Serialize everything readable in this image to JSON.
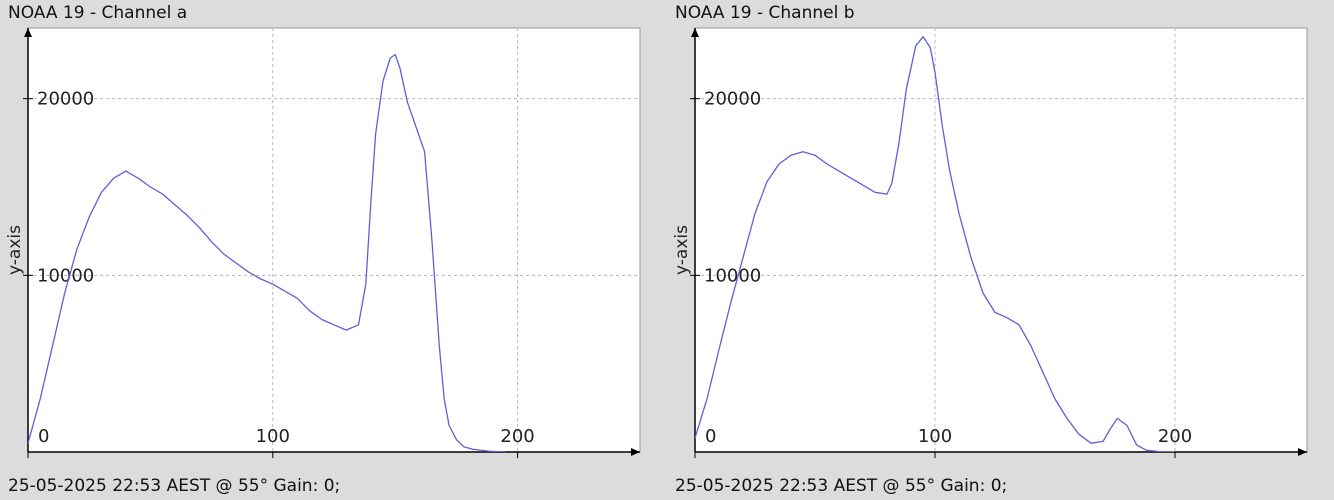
{
  "chart_data": [
    {
      "type": "line",
      "title": "NOAA 19 - Channel a",
      "footer": "25-05-2025 22:53 AEST @ 55° Gain: 0;",
      "xlabel": "",
      "ylabel": "y-axis",
      "xlim": [
        0,
        250
      ],
      "ylim": [
        0,
        24000
      ],
      "x_ticks": [
        0,
        100,
        200
      ],
      "y_ticks": [
        10000,
        20000
      ],
      "grid": true,
      "series": [
        {
          "color": "#5f5fd9",
          "x": [
            -5,
            0,
            5,
            10,
            15,
            20,
            25,
            30,
            35,
            40,
            45,
            50,
            55,
            60,
            65,
            70,
            75,
            80,
            85,
            90,
            95,
            100,
            105,
            110,
            115,
            120,
            125,
            130,
            135,
            138,
            140,
            142,
            145,
            148,
            150,
            152,
            155,
            158,
            162,
            165,
            168,
            170,
            172,
            175,
            178,
            182,
            188,
            195
          ],
          "y": [
            0,
            500,
            3000,
            6000,
            9000,
            11500,
            13300,
            14700,
            15500,
            15900,
            15500,
            15000,
            14600,
            14000,
            13400,
            12700,
            11900,
            11200,
            10700,
            10200,
            9800,
            9500,
            9100,
            8700,
            8000,
            7500,
            7200,
            6900,
            7200,
            9500,
            14000,
            18000,
            21000,
            22300,
            22500,
            21700,
            19800,
            18600,
            17000,
            12000,
            6000,
            3000,
            1500,
            700,
            300,
            150,
            50,
            0
          ]
        }
      ]
    },
    {
      "type": "line",
      "title": "NOAA 19 - Channel b",
      "footer": "25-05-2025 22:53 AEST @ 55° Gain: 0;",
      "xlabel": "",
      "ylabel": "y-axis",
      "xlim": [
        0,
        255
      ],
      "ylim": [
        0,
        24000
      ],
      "x_ticks": [
        0,
        100,
        200
      ],
      "y_ticks": [
        10000,
        20000
      ],
      "grid": true,
      "series": [
        {
          "color": "#5f5fd9",
          "x": [
            -5,
            0,
            5,
            10,
            15,
            20,
            25,
            30,
            35,
            40,
            45,
            50,
            55,
            60,
            65,
            70,
            75,
            80,
            82,
            85,
            88,
            92,
            95,
            98,
            100,
            103,
            106,
            110,
            115,
            120,
            125,
            130,
            135,
            140,
            145,
            150,
            155,
            160,
            165,
            170,
            173,
            176,
            180,
            184,
            188,
            195,
            200
          ],
          "y": [
            0,
            800,
            3000,
            5800,
            8500,
            11000,
            13500,
            15300,
            16300,
            16800,
            17000,
            16800,
            16300,
            15900,
            15500,
            15100,
            14700,
            14600,
            15200,
            17500,
            20500,
            23000,
            23500,
            22900,
            21500,
            18500,
            16000,
            13500,
            11000,
            9000,
            7900,
            7600,
            7200,
            6000,
            4500,
            3000,
            1900,
            1000,
            500,
            600,
            1300,
            1900,
            1500,
            400,
            100,
            0,
            0
          ]
        }
      ]
    }
  ]
}
